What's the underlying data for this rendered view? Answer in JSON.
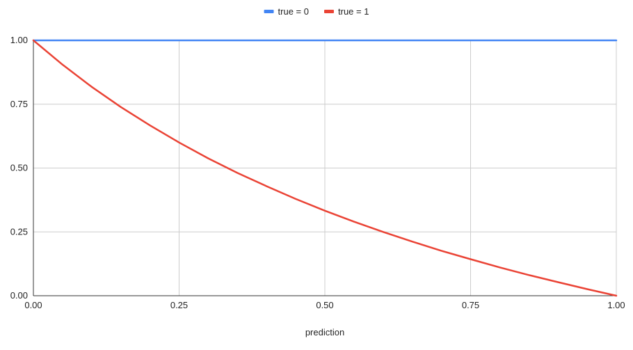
{
  "chart_data": {
    "type": "line",
    "title": "",
    "xlabel": "prediction",
    "ylabel": "",
    "xlim": [
      0,
      1
    ],
    "ylim": [
      0,
      1
    ],
    "grid": true,
    "legend_position": "top",
    "x_ticks": [
      "0.00",
      "0.25",
      "0.50",
      "0.75",
      "1.00"
    ],
    "y_ticks": [
      "0.00",
      "0.25",
      "0.50",
      "0.75",
      "1.00"
    ],
    "x": [
      0.0,
      0.05,
      0.1,
      0.15,
      0.2,
      0.25,
      0.3,
      0.35,
      0.4,
      0.45,
      0.5,
      0.55,
      0.6,
      0.65,
      0.7,
      0.75,
      0.8,
      0.85,
      0.9,
      0.95,
      1.0
    ],
    "series": [
      {
        "name": "true = 0",
        "color": "#4285f4",
        "values": [
          1,
          1,
          1,
          1,
          1,
          1,
          1,
          1,
          1,
          1,
          1,
          1,
          1,
          1,
          1,
          1,
          1,
          1,
          1,
          1,
          1
        ]
      },
      {
        "name": "true = 1",
        "color": "#ea4335",
        "values": [
          1.0,
          0.905,
          0.818,
          0.739,
          0.667,
          0.6,
          0.538,
          0.481,
          0.429,
          0.379,
          0.333,
          0.29,
          0.25,
          0.212,
          0.176,
          0.143,
          0.111,
          0.081,
          0.053,
          0.026,
          0.0
        ]
      }
    ]
  }
}
